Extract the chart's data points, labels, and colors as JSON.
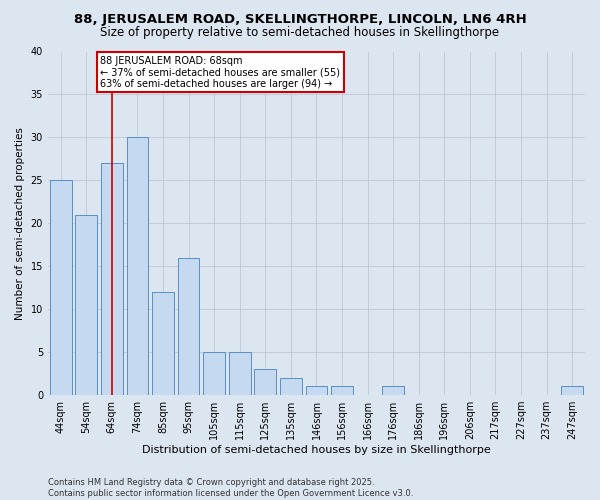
{
  "title": "88, JERUSALEM ROAD, SKELLINGTHORPE, LINCOLN, LN6 4RH",
  "subtitle": "Size of property relative to semi-detached houses in Skellingthorpe",
  "xlabel": "Distribution of semi-detached houses by size in Skellingthorpe",
  "ylabel": "Number of semi-detached properties",
  "categories": [
    "44sqm",
    "54sqm",
    "64sqm",
    "74sqm",
    "85sqm",
    "95sqm",
    "105sqm",
    "115sqm",
    "125sqm",
    "135sqm",
    "146sqm",
    "156sqm",
    "166sqm",
    "176sqm",
    "186sqm",
    "196sqm",
    "206sqm",
    "217sqm",
    "227sqm",
    "237sqm",
    "247sqm"
  ],
  "values": [
    25,
    21,
    27,
    30,
    12,
    16,
    5,
    5,
    3,
    2,
    1,
    1,
    0,
    1,
    0,
    0,
    0,
    0,
    0,
    0,
    1
  ],
  "bar_color": "#c5d9f0",
  "bar_edge_color": "#5a8fc3",
  "red_line_index": 2,
  "annotation_text": "88 JERUSALEM ROAD: 68sqm\n← 37% of semi-detached houses are smaller (55)\n63% of semi-detached houses are larger (94) →",
  "annotation_box_color": "#ffffff",
  "annotation_box_edge": "#cc0000",
  "annotation_text_color": "#000000",
  "red_line_color": "#cc0000",
  "ylim": [
    0,
    40
  ],
  "yticks": [
    0,
    5,
    10,
    15,
    20,
    25,
    30,
    35,
    40
  ],
  "grid_color": "#c0c8d8",
  "bg_color": "#dce6f1",
  "footer": "Contains HM Land Registry data © Crown copyright and database right 2025.\nContains public sector information licensed under the Open Government Licence v3.0.",
  "title_fontsize": 9.5,
  "subtitle_fontsize": 8.5,
  "xlabel_fontsize": 8,
  "ylabel_fontsize": 7.5,
  "tick_fontsize": 7,
  "annotation_fontsize": 7,
  "footer_fontsize": 6
}
